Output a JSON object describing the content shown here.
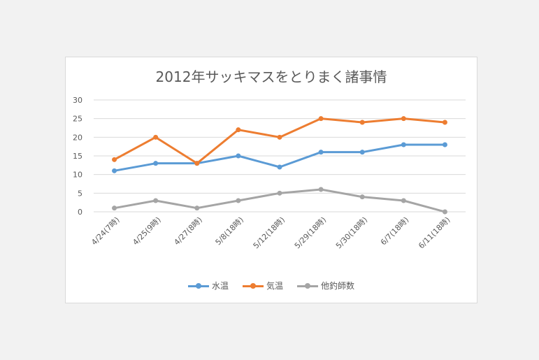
{
  "chart_data": {
    "type": "line",
    "title": "2012年サッキマスをとりまく諸事情",
    "categories": [
      "4/24(7時)",
      "4/25(9時)",
      "4/27(8時)",
      "5/8(18時)",
      "5/12(18時)",
      "5/29(18時)",
      "5/30(18時)",
      "6/7(18時)",
      "6/11(18時)"
    ],
    "ylim": [
      0,
      30
    ],
    "yticks": [
      0,
      5,
      10,
      15,
      20,
      25,
      30
    ],
    "ytick_labels": [
      "0",
      "5",
      "10",
      "15",
      "20",
      "25",
      "30"
    ],
    "grid": true,
    "legend_position": "bottom",
    "series": [
      {
        "name": "水温",
        "color": "#5b9bd5",
        "values": [
          11,
          13,
          13,
          15,
          12,
          16,
          16,
          18,
          18
        ]
      },
      {
        "name": "気温",
        "color": "#ed7d31",
        "values": [
          14,
          20,
          13,
          22,
          20,
          25,
          24,
          25,
          24
        ]
      },
      {
        "name": "他釣師数",
        "color": "#a5a5a5",
        "values": [
          1,
          3,
          1,
          3,
          5,
          6,
          4,
          3,
          0
        ]
      }
    ]
  }
}
